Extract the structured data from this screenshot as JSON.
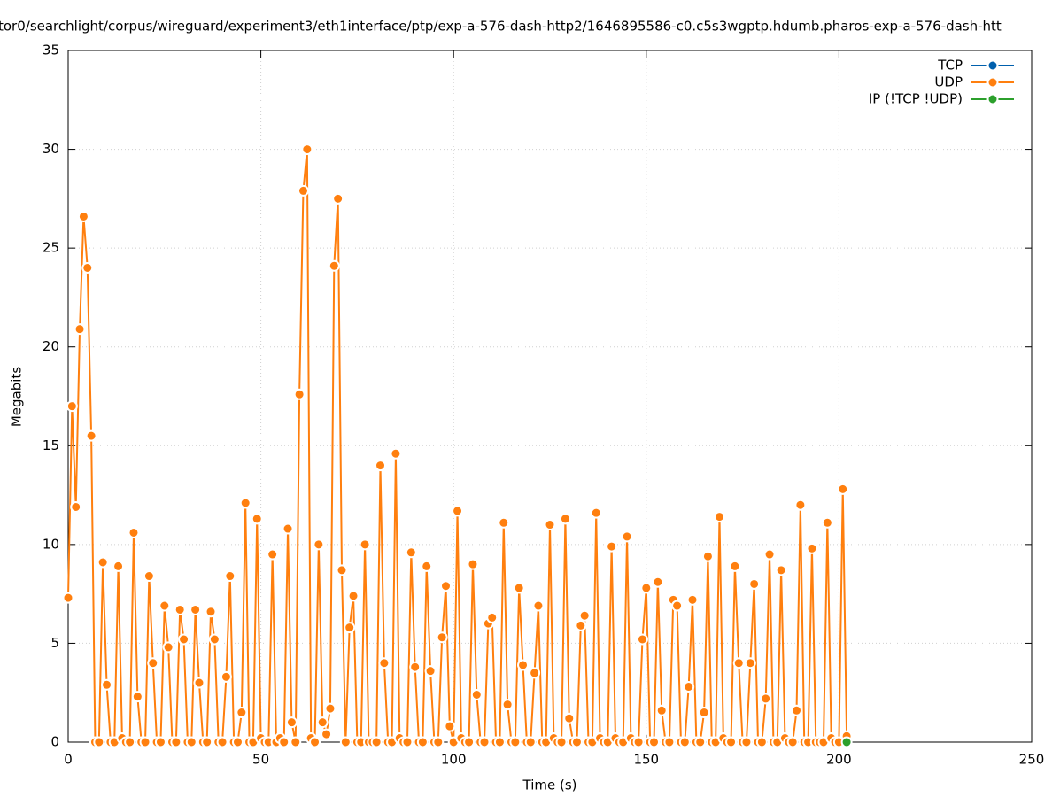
{
  "chart_data": {
    "type": "line",
    "title": "tor0/searchlight/corpus/wireguard/experiment3/eth1interface/ptp/exp-a-576-dash-http2/1646895586-c0.c5s3wgptp.hdumb.pharos-exp-a-576-dash-htt",
    "x_label": "Time (s)",
    "y_label": "Megabits",
    "xlim": [
      0,
      250
    ],
    "xticks": [
      0,
      50,
      100,
      150,
      200,
      250
    ],
    "ylim": [
      0,
      35
    ],
    "yticks": [
      0,
      5,
      10,
      15,
      20,
      25,
      30,
      35
    ],
    "grid": true,
    "legend": "top-right",
    "series": [
      {
        "name": "TCP",
        "color": "#0060ad"
      },
      {
        "name": "UDP",
        "color": "#ff7f0e",
        "x": [
          0,
          1,
          2,
          3,
          4,
          5,
          6,
          7,
          8,
          9,
          10,
          11,
          12,
          13,
          14,
          15,
          16,
          17,
          18,
          19,
          20,
          21,
          22,
          23,
          24,
          25,
          26,
          27,
          28,
          29,
          30,
          31,
          32,
          33,
          34,
          35,
          36,
          37,
          38,
          39,
          40,
          41,
          42,
          43,
          44,
          45,
          46,
          47,
          48,
          49,
          50,
          51,
          52,
          53,
          54,
          55,
          56,
          57,
          58,
          59,
          60,
          61,
          62,
          63,
          64,
          65,
          66,
          67,
          68,
          69,
          70,
          71,
          72,
          73,
          74,
          75,
          76,
          77,
          78,
          79,
          80,
          81,
          82,
          83,
          84,
          85,
          86,
          87,
          88,
          89,
          90,
          91,
          92,
          93,
          94,
          95,
          96,
          97,
          98,
          99,
          100,
          101,
          102,
          103,
          104,
          105,
          106,
          107,
          108,
          109,
          110,
          111,
          112,
          113,
          114,
          115,
          116,
          117,
          118,
          119,
          120,
          121,
          122,
          123,
          124,
          125,
          126,
          127,
          128,
          129,
          130,
          131,
          132,
          133,
          134,
          135,
          136,
          137,
          138,
          139,
          140,
          141,
          142,
          143,
          144,
          145,
          146,
          147,
          148,
          149,
          150,
          151,
          152,
          153,
          154,
          155,
          156,
          157,
          158,
          159,
          160,
          161,
          162,
          163,
          164,
          165,
          166,
          167,
          168,
          169,
          170,
          171,
          172,
          173,
          174,
          175,
          176,
          177,
          178,
          179,
          180,
          181,
          182,
          183,
          184,
          185,
          186,
          187,
          188,
          189,
          190,
          191,
          192,
          193,
          194,
          195,
          196,
          197,
          198,
          199,
          200,
          201,
          202
        ],
        "values": [
          7.3,
          17.0,
          11.9,
          20.9,
          26.6,
          24.0,
          15.5,
          0,
          0,
          9.1,
          2.9,
          0,
          0,
          8.9,
          0.2,
          0,
          0,
          10.6,
          2.3,
          0,
          0,
          8.4,
          4.0,
          0,
          0,
          6.9,
          4.8,
          0,
          0,
          6.7,
          5.2,
          0,
          0,
          6.7,
          3.0,
          0,
          0,
          6.6,
          5.2,
          0,
          0,
          3.3,
          8.4,
          0,
          0,
          1.5,
          12.1,
          0,
          0,
          11.3,
          0.2,
          0,
          0,
          9.5,
          0,
          0.2,
          0,
          10.8,
          1.0,
          0,
          17.6,
          27.9,
          30.0,
          0.2,
          0,
          10.0,
          1.0,
          0.4,
          1.7,
          24.1,
          27.5,
          8.7,
          0,
          5.8,
          7.4,
          0,
          0,
          10.0,
          0,
          0,
          0,
          14.0,
          4.0,
          0,
          0,
          14.6,
          0.2,
          0,
          0,
          9.6,
          3.8,
          0,
          0,
          8.9,
          3.6,
          0,
          0,
          5.3,
          7.9,
          0.8,
          0,
          11.7,
          0.2,
          0,
          0,
          9.0,
          2.4,
          0,
          0,
          6.0,
          6.3,
          0,
          0,
          11.1,
          1.9,
          0,
          0,
          7.8,
          3.9,
          0,
          0,
          3.5,
          6.9,
          0,
          0,
          11.0,
          0.2,
          0,
          0,
          11.3,
          1.2,
          0,
          0,
          5.9,
          6.4,
          0,
          0,
          11.6,
          0.2,
          0,
          0,
          9.9,
          0.2,
          0,
          0,
          10.4,
          0.2,
          0,
          0,
          5.2,
          7.8,
          0,
          0,
          8.1,
          1.6,
          0,
          0,
          7.2,
          6.9,
          0,
          0,
          2.8,
          7.2,
          0,
          0,
          1.5,
          9.4,
          0,
          0,
          11.4,
          0.2,
          0,
          0,
          8.9,
          4.0,
          0,
          0,
          4.0,
          8.0,
          0,
          0,
          2.2,
          9.5,
          0,
          0,
          8.7,
          0.2,
          0,
          0,
          1.6,
          12.0,
          0,
          0,
          9.8,
          0,
          0,
          0,
          11.1,
          0.2,
          0,
          0,
          12.8,
          0.3
        ]
      },
      {
        "name": "IP (!TCP  !UDP)",
        "color": "#2ca02c",
        "x": [
          202
        ],
        "values": [
          0
        ]
      }
    ]
  }
}
